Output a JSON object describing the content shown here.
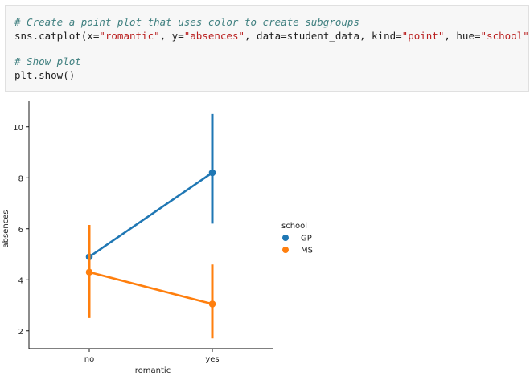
{
  "code": {
    "comment1": "# Create a point plot that uses color to create subgroups",
    "line2": {
      "p1": "sns.catplot(x=",
      "s1": "\"romantic\"",
      "p2": ", y=",
      "s2": "\"absences\"",
      "p3": ", data=student_data, kind=",
      "s3": "\"point\"",
      "p4": ", hue=",
      "s4": "\"school\"",
      "p5": ")"
    },
    "comment2": "# Show plot",
    "line4": "plt.show()"
  },
  "chart_data": {
    "type": "line",
    "xlabel": "romantic",
    "ylabel": "absences",
    "categories": [
      "no",
      "yes"
    ],
    "yticks": [
      2,
      4,
      6,
      8,
      10
    ],
    "ylim": [
      1.3,
      11.0
    ],
    "legend_title": "school",
    "legend_placement": "right",
    "series": [
      {
        "name": "GP",
        "color": "#1f77b4",
        "values": [
          4.9,
          8.2
        ],
        "ci_low": [
          4.6,
          6.2
        ],
        "ci_high": [
          5.2,
          10.5
        ]
      },
      {
        "name": "MS",
        "color": "#ff7f0e",
        "values": [
          4.3,
          3.05
        ],
        "ci_low": [
          2.5,
          1.7
        ],
        "ci_high": [
          6.15,
          4.6
        ]
      }
    ]
  }
}
